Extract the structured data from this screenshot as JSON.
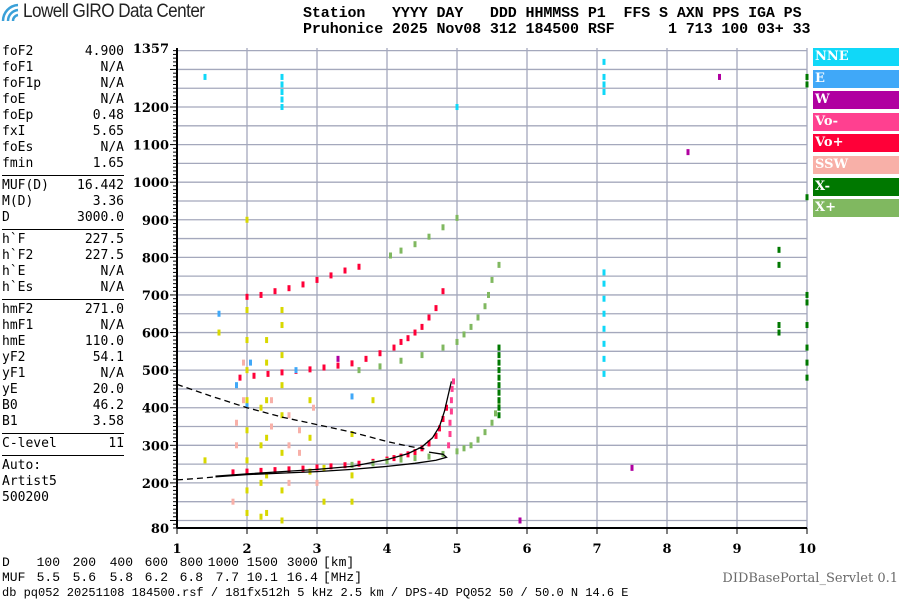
{
  "header": {
    "logo_text": "Lowell GIRO Data Center",
    "line1": "Station   YYYY DAY   DDD HHMMSS P1  FFS S AXN PPS IGA PS",
    "line2": "Pruhonice 2025 Nov08 312 184500 RSF      1 713 100 03+ 33"
  },
  "params": {
    "groups": [
      [
        [
          "foF2",
          "4.900"
        ],
        [
          "foF1",
          "N/A"
        ],
        [
          "foF1p",
          "N/A"
        ],
        [
          "foE",
          "N/A"
        ],
        [
          "foEp",
          "0.48"
        ],
        [
          "fxI",
          "5.65"
        ],
        [
          "foEs",
          "N/A"
        ],
        [
          "fmin",
          "1.65"
        ]
      ],
      [
        [
          "MUF(D)",
          "16.442"
        ],
        [
          "M(D)",
          "3.36"
        ],
        [
          "D",
          "3000.0"
        ]
      ],
      [
        [
          "h`F",
          "227.5"
        ],
        [
          "h`F2",
          "227.5"
        ],
        [
          "h`E",
          "N/A"
        ],
        [
          "h`Es",
          "N/A"
        ]
      ],
      [
        [
          "hmF2",
          "271.0"
        ],
        [
          "hmF1",
          "N/A"
        ],
        [
          "hmE",
          "110.0"
        ],
        [
          "yF2",
          "54.1"
        ],
        [
          "yF1",
          "N/A"
        ],
        [
          "yE",
          "20.0"
        ],
        [
          "B0",
          "46.2"
        ],
        [
          "B1",
          "3.58"
        ]
      ],
      [
        [
          "C-level",
          "11"
        ]
      ]
    ],
    "auto": [
      "Auto:",
      "Artist5",
      "500200"
    ]
  },
  "muf_table": {
    "d_label": "D",
    "d_values": [
      "100",
      "200",
      "400",
      "600",
      "800",
      "1000",
      "1500",
      "3000"
    ],
    "d_unit": "[km]",
    "muf_label": "MUF",
    "muf_values": [
      "5.5",
      "5.6",
      "5.8",
      "6.2",
      "6.8",
      "7.7",
      "10.1",
      "16.4"
    ],
    "muf_unit": "[MHz]"
  },
  "footer": {
    "info": "db pq052 20251108 184500.rsf / 181fx512h 5 kHz 2.5 km / DPS-4D PQ052 50 / 50.0 N 14.6 E",
    "servlet": "DIDBasePortal_Servlet 0.1"
  },
  "chart_data": {
    "type": "scatter",
    "xlim": [
      1,
      10
    ],
    "ylim": [
      80,
      1357
    ],
    "x_ticks": [
      "1",
      "2",
      "3",
      "4",
      "5",
      "6",
      "7",
      "8",
      "9",
      "10"
    ],
    "y_ticks": [
      "1357",
      "1200",
      "1100",
      "1000",
      "900",
      "800",
      "700",
      "600",
      "500",
      "400",
      "300",
      "200",
      "80"
    ],
    "grid": true,
    "legend_position": "right",
    "legend": [
      {
        "name": "NNE",
        "color": "#10d8f8"
      },
      {
        "name": "E",
        "color": "#40a8f8"
      },
      {
        "name": "W",
        "color": "#b000a0"
      },
      {
        "name": "Vo-",
        "color": "#ff4090"
      },
      {
        "name": "Vo+",
        "color": "#ff0038"
      },
      {
        "name": "SSW",
        "color": "#f8b0a8"
      },
      {
        "name": "X-",
        "color": "#007800"
      },
      {
        "name": "X+",
        "color": "#80b860"
      }
    ],
    "series": [
      {
        "name": "Vo+",
        "color": "#ff0038",
        "points": [
          [
            1.8,
            228
          ],
          [
            2.0,
            230
          ],
          [
            2.2,
            232
          ],
          [
            2.4,
            234
          ],
          [
            2.6,
            236
          ],
          [
            2.8,
            238
          ],
          [
            3.0,
            241
          ],
          [
            3.2,
            244
          ],
          [
            3.4,
            247
          ],
          [
            3.6,
            251
          ],
          [
            3.8,
            256
          ],
          [
            4.0,
            262
          ],
          [
            4.1,
            266
          ],
          [
            4.2,
            270
          ],
          [
            4.3,
            276
          ],
          [
            4.4,
            282
          ],
          [
            4.5,
            292
          ],
          [
            4.6,
            305
          ],
          [
            4.7,
            325
          ],
          [
            4.75,
            345
          ],
          [
            4.8,
            370
          ],
          [
            4.85,
            400
          ],
          [
            1.9,
            480
          ],
          [
            2.1,
            485
          ],
          [
            2.3,
            490
          ],
          [
            2.5,
            494
          ],
          [
            2.7,
            498
          ],
          [
            2.9,
            502
          ],
          [
            3.1,
            507
          ],
          [
            3.3,
            512
          ],
          [
            3.5,
            518
          ],
          [
            3.7,
            530
          ],
          [
            3.9,
            545
          ],
          [
            4.1,
            560
          ],
          [
            4.2,
            575
          ],
          [
            4.3,
            585
          ],
          [
            4.4,
            600
          ],
          [
            4.5,
            615
          ],
          [
            4.6,
            640
          ],
          [
            4.7,
            665
          ],
          [
            4.8,
            710
          ],
          [
            2.0,
            695
          ],
          [
            2.2,
            700
          ],
          [
            2.4,
            710
          ],
          [
            2.6,
            718
          ],
          [
            2.8,
            728
          ],
          [
            3.0,
            740
          ],
          [
            3.2,
            752
          ],
          [
            3.4,
            765
          ],
          [
            3.6,
            775
          ]
        ]
      },
      {
        "name": "Vo-",
        "color": "#ff4090",
        "points": [
          [
            4.88,
            300
          ],
          [
            4.9,
            330
          ],
          [
            4.9,
            360
          ],
          [
            4.92,
            390
          ],
          [
            4.92,
            420
          ],
          [
            4.93,
            450
          ],
          [
            4.95,
            470
          ]
        ]
      },
      {
        "name": "X+",
        "color": "#80b860",
        "points": [
          [
            3.5,
            248
          ],
          [
            3.8,
            252
          ],
          [
            4.0,
            258
          ],
          [
            4.2,
            262
          ],
          [
            4.4,
            266
          ],
          [
            4.6,
            270
          ],
          [
            4.8,
            277
          ],
          [
            5.0,
            284
          ],
          [
            5.1,
            292
          ],
          [
            5.2,
            300
          ],
          [
            5.3,
            315
          ],
          [
            5.4,
            335
          ],
          [
            5.5,
            360
          ],
          [
            5.55,
            385
          ],
          [
            5.6,
            410
          ],
          [
            3.6,
            500
          ],
          [
            3.9,
            510
          ],
          [
            4.2,
            525
          ],
          [
            4.5,
            540
          ],
          [
            4.8,
            560
          ],
          [
            5.0,
            575
          ],
          [
            5.1,
            595
          ],
          [
            5.2,
            615
          ],
          [
            5.3,
            640
          ],
          [
            5.4,
            670
          ],
          [
            5.45,
            700
          ],
          [
            5.5,
            740
          ],
          [
            5.6,
            780
          ],
          [
            4.05,
            805
          ],
          [
            4.2,
            818
          ],
          [
            4.4,
            835
          ],
          [
            4.6,
            855
          ],
          [
            4.8,
            880
          ],
          [
            5.0,
            905
          ]
        ]
      },
      {
        "name": "X-",
        "color": "#007800",
        "points": [
          [
            5.6,
            380
          ],
          [
            5.6,
            400
          ],
          [
            5.6,
            420
          ],
          [
            5.6,
            440
          ],
          [
            5.6,
            460
          ],
          [
            5.6,
            480
          ],
          [
            5.6,
            500
          ],
          [
            5.6,
            520
          ],
          [
            5.6,
            540
          ],
          [
            5.6,
            560
          ],
          [
            9.6,
            600
          ],
          [
            9.6,
            620
          ],
          [
            9.6,
            780
          ],
          [
            9.6,
            820
          ],
          [
            10,
            480
          ],
          [
            10,
            520
          ],
          [
            10,
            560
          ],
          [
            10,
            620
          ],
          [
            10,
            680
          ],
          [
            10,
            700
          ],
          [
            10,
            960
          ],
          [
            10,
            1260
          ],
          [
            10,
            1280
          ]
        ]
      },
      {
        "name": "NNE",
        "color": "#10d8f8",
        "points": [
          [
            7.1,
            490
          ],
          [
            7.1,
            530
          ],
          [
            7.1,
            570
          ],
          [
            7.1,
            610
          ],
          [
            7.1,
            650
          ],
          [
            7.1,
            690
          ],
          [
            7.1,
            730
          ],
          [
            7.1,
            760
          ],
          [
            7.1,
            1240
          ],
          [
            7.1,
            1260
          ],
          [
            7.1,
            1280
          ],
          [
            7.1,
            1320
          ],
          [
            2.5,
            1200
          ],
          [
            2.5,
            1220
          ],
          [
            2.5,
            1240
          ],
          [
            2.5,
            1260
          ],
          [
            2.5,
            1280
          ],
          [
            5.0,
            1200
          ],
          [
            1.4,
            1280
          ]
        ]
      },
      {
        "name": "E",
        "color": "#40a8f8",
        "points": [
          [
            1.85,
            460
          ],
          [
            2.0,
            410
          ],
          [
            2.05,
            520
          ],
          [
            2.7,
            500
          ],
          [
            3.5,
            430
          ],
          [
            1.6,
            650
          ]
        ]
      },
      {
        "name": "W",
        "color": "#b000a0",
        "points": [
          [
            8.3,
            1080
          ],
          [
            8.75,
            1280
          ],
          [
            7.5,
            240
          ],
          [
            5.9,
            100
          ],
          [
            3.3,
            530
          ]
        ]
      },
      {
        "name": "SSW",
        "color": "#f8b0a8",
        "points": [
          [
            1.85,
            300
          ],
          [
            1.85,
            360
          ],
          [
            1.95,
            420
          ],
          [
            1.95,
            520
          ],
          [
            2.35,
            350
          ],
          [
            2.35,
            420
          ],
          [
            2.6,
            300
          ],
          [
            2.6,
            380
          ],
          [
            2.75,
            280
          ],
          [
            2.75,
            340
          ],
          [
            2.95,
            400
          ],
          [
            3.0,
            200
          ],
          [
            1.8,
            150
          ],
          [
            2.6,
            200
          ]
        ]
      },
      {
        "name": "",
        "color": "#d8d800",
        "points": [
          [
            2.0,
            120
          ],
          [
            2.0,
            180
          ],
          [
            2.0,
            260
          ],
          [
            2.0,
            340
          ],
          [
            2.0,
            420
          ],
          [
            2.0,
            500
          ],
          [
            2.0,
            580
          ],
          [
            2.0,
            660
          ],
          [
            2.2,
            110
          ],
          [
            2.2,
            200
          ],
          [
            2.2,
            300
          ],
          [
            2.2,
            400
          ],
          [
            2.28,
            120
          ],
          [
            2.28,
            220
          ],
          [
            2.28,
            320
          ],
          [
            2.28,
            420
          ],
          [
            2.28,
            520
          ],
          [
            2.28,
            580
          ],
          [
            2.5,
            100
          ],
          [
            2.5,
            180
          ],
          [
            2.5,
            280
          ],
          [
            2.5,
            380
          ],
          [
            2.5,
            460
          ],
          [
            2.5,
            540
          ],
          [
            2.5,
            620
          ],
          [
            2.5,
            660
          ],
          [
            2.9,
            230
          ],
          [
            2.9,
            320
          ],
          [
            2.9,
            420
          ],
          [
            3.1,
            150
          ],
          [
            3.1,
            240
          ],
          [
            3.5,
            150
          ],
          [
            3.5,
            220
          ],
          [
            3.8,
            420
          ],
          [
            3.5,
            330
          ],
          [
            1.4,
            260
          ],
          [
            1.6,
            600
          ],
          [
            2.0,
            900
          ]
        ]
      }
    ],
    "curves": [
      {
        "style": "solid",
        "points": [
          [
            1.55,
            218
          ],
          [
            2.0,
            224
          ],
          [
            2.5,
            230
          ],
          [
            3.0,
            236
          ],
          [
            3.5,
            244
          ],
          [
            4.0,
            262
          ],
          [
            4.3,
            278
          ],
          [
            4.5,
            296
          ],
          [
            4.65,
            320
          ],
          [
            4.75,
            350
          ],
          [
            4.82,
            390
          ],
          [
            4.87,
            430
          ],
          [
            4.92,
            470
          ]
        ]
      },
      {
        "style": "solid",
        "points": [
          [
            1.55,
            216
          ],
          [
            2.0,
            222
          ],
          [
            2.5,
            226
          ],
          [
            3.0,
            230
          ],
          [
            3.5,
            236
          ],
          [
            4.0,
            244
          ],
          [
            4.4,
            252
          ],
          [
            4.7,
            260
          ],
          [
            4.85,
            268
          ],
          [
            4.8,
            276
          ],
          [
            4.6,
            282
          ]
        ]
      },
      {
        "style": "dashed",
        "points": [
          [
            1.0,
            208
          ],
          [
            1.3,
            212
          ],
          [
            1.55,
            216
          ]
        ]
      },
      {
        "style": "dashed",
        "points": [
          [
            1.0,
            462
          ],
          [
            1.5,
            430
          ],
          [
            2.0,
            400
          ],
          [
            2.5,
            375
          ],
          [
            3.0,
            355
          ],
          [
            3.5,
            335
          ],
          [
            4.0,
            310
          ],
          [
            4.3,
            298
          ],
          [
            4.55,
            290
          ]
        ]
      }
    ]
  }
}
